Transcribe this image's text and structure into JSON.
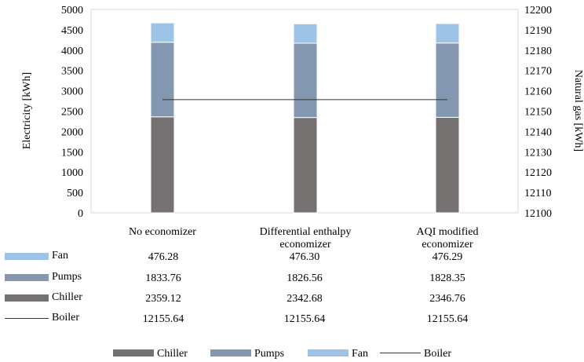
{
  "chart_data": {
    "type": "bar",
    "stacked": true,
    "categories": [
      [
        "No economizer"
      ],
      [
        "Differential enthalpy",
        "economizer"
      ],
      [
        "AQI modified",
        "economizer"
      ]
    ],
    "series": [
      {
        "name": "Chiller",
        "axis": "left",
        "color": "#767171",
        "values": [
          2359.12,
          2342.68,
          2346.76
        ]
      },
      {
        "name": "Pumps",
        "axis": "left",
        "color": "#8497b0",
        "values": [
          1833.76,
          1826.56,
          1828.35
        ]
      },
      {
        "name": "Fan",
        "axis": "left",
        "color": "#9dc3e6",
        "values": [
          476.28,
          476.3,
          476.29
        ]
      },
      {
        "name": "Boiler",
        "axis": "right",
        "type": "line",
        "color": "#333333",
        "values": [
          12155.64,
          12155.64,
          12155.64
        ]
      }
    ],
    "ylabel": "Electricity [kWh]",
    "y2label": "Natural gas [kWh]",
    "ylim": [
      0,
      5000
    ],
    "y2lim": [
      12100,
      12200
    ],
    "yticks": [
      "0",
      "500",
      "1000",
      "1500",
      "2000",
      "2500",
      "3000",
      "3500",
      "4000",
      "4500",
      "5000"
    ],
    "y2ticks": [
      "12100",
      "12110",
      "12120",
      "12130",
      "12140",
      "12150",
      "12160",
      "12170",
      "12180",
      "12190",
      "12200"
    ],
    "grid": false,
    "legend": "bottom"
  },
  "data_table": {
    "rows": [
      {
        "label": "Fan",
        "values": [
          "476.28",
          "476.30",
          "476.29"
        ]
      },
      {
        "label": "Pumps",
        "values": [
          "1833.76",
          "1826.56",
          "1828.35"
        ]
      },
      {
        "label": "Chiller",
        "values": [
          "2359.12",
          "2342.68",
          "2346.76"
        ]
      },
      {
        "label": "Boiler",
        "values": [
          "12155.64",
          "12155.64",
          "12155.64"
        ]
      }
    ]
  },
  "legend": {
    "items": [
      {
        "label": "Chiller"
      },
      {
        "label": "Pumps"
      },
      {
        "label": "Fan"
      },
      {
        "label": "Boiler"
      }
    ]
  }
}
